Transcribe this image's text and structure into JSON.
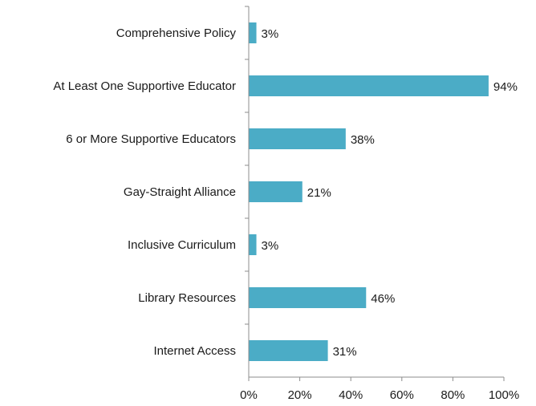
{
  "chart_data": {
    "type": "bar",
    "orientation": "horizontal",
    "categories": [
      "Comprehensive Policy",
      "At Least One Supportive Educator",
      "6 or More Supportive Educators",
      "Gay-Straight Alliance",
      "Inclusive Curriculum",
      "Library Resources",
      "Internet Access"
    ],
    "values": [
      3,
      94,
      38,
      21,
      3,
      46,
      31
    ],
    "value_labels": [
      "3%",
      "94%",
      "38%",
      "21%",
      "3%",
      "46%",
      "31%"
    ],
    "xlim": [
      0,
      100
    ],
    "x_ticks": [
      0,
      20,
      40,
      60,
      80,
      100
    ],
    "x_tick_labels": [
      "0%",
      "20%",
      "40%",
      "60%",
      "80%",
      "100%"
    ],
    "bar_color": "#4bacc6",
    "axis_color": "#8c8c8c",
    "grid": false,
    "legend": "none"
  }
}
